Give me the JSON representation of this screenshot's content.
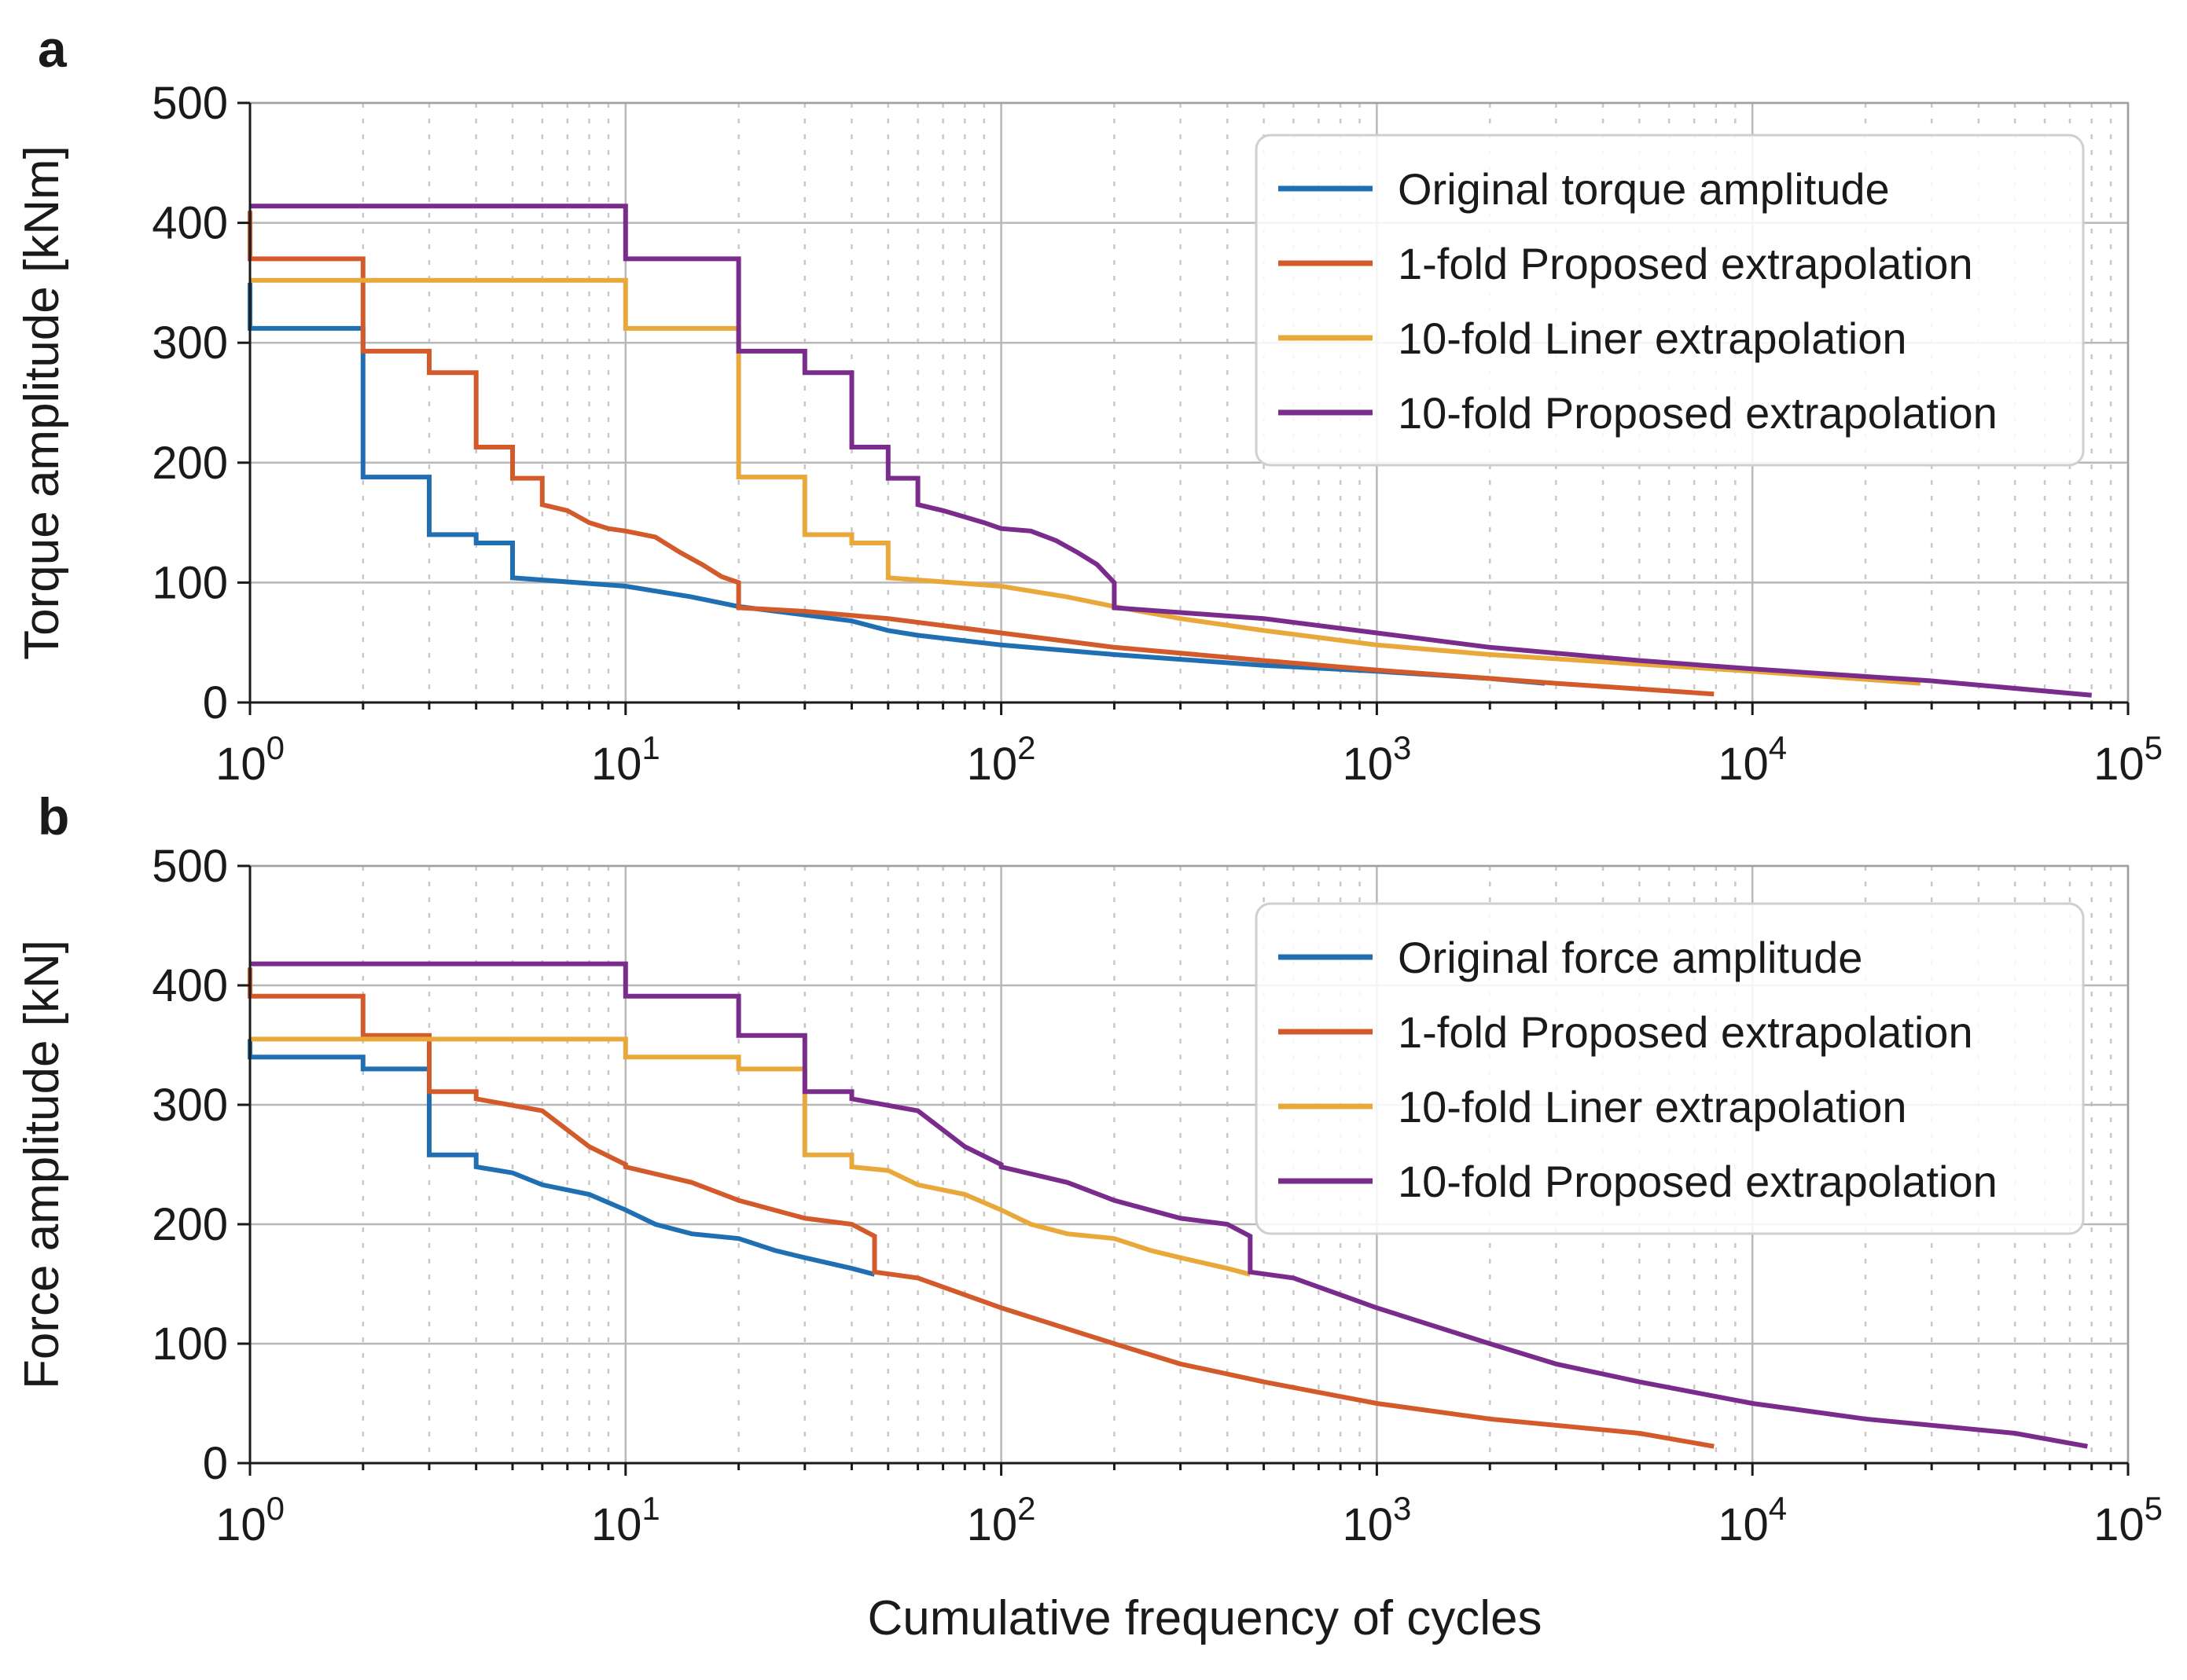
{
  "chart_data": [
    {
      "type": "line",
      "panel": "a",
      "xscale": "log",
      "xlim": [
        1,
        100000
      ],
      "ylim": [
        0,
        500
      ],
      "yticks": [
        0,
        100,
        200,
        300,
        400,
        500
      ],
      "ytick_labels": [
        "0",
        "100",
        "200",
        "300",
        "400",
        "500"
      ],
      "xticks": [
        1,
        10,
        100,
        1000,
        10000,
        100000
      ],
      "xtick_labels": [
        {
          "base": "10",
          "exp": "0"
        },
        {
          "base": "10",
          "exp": "1"
        },
        {
          "base": "10",
          "exp": "2"
        },
        {
          "base": "10",
          "exp": "3"
        },
        {
          "base": "10",
          "exp": "4"
        },
        {
          "base": "10",
          "exp": "5"
        }
      ],
      "xlabel": "",
      "ylabel": "Torque amplitude [kNm]",
      "grid": true,
      "legend_position": "top-right",
      "series": [
        {
          "name": "Original torque amplitude",
          "color": "#1f6fb2",
          "x": [
            1,
            1,
            2,
            2,
            3,
            3,
            4,
            4,
            5,
            5,
            10,
            15,
            20,
            40,
            50,
            60,
            100,
            200,
            300,
            500,
            1000,
            2000,
            2800
          ],
          "y": [
            350,
            312,
            312,
            188,
            188,
            140,
            140,
            133,
            133,
            104,
            97,
            88,
            80,
            68,
            60,
            56,
            48,
            40,
            36,
            31,
            26,
            20,
            16
          ]
        },
        {
          "name": "1-fold Proposed extrapolation",
          "color": "#d35a2a",
          "x": [
            1,
            1,
            2,
            2,
            3,
            3,
            4,
            4,
            5,
            5,
            6,
            6,
            7,
            8,
            9,
            10,
            12,
            14,
            16,
            18,
            20,
            20,
            30,
            50,
            100,
            200,
            500,
            1000,
            3000,
            7900
          ],
          "y": [
            410,
            370,
            370,
            293,
            293,
            275,
            275,
            213,
            213,
            187,
            187,
            165,
            160,
            150,
            145,
            143,
            138,
            125,
            115,
            105,
            100,
            79,
            76,
            70,
            58,
            46,
            35,
            27,
            16,
            7
          ]
        },
        {
          "name": "10-fold Liner extrapolation",
          "color": "#e8a93a",
          "x": [
            1,
            10,
            10,
            20,
            20,
            30,
            30,
            40,
            40,
            50,
            50,
            100,
            150,
            200,
            300,
            500,
            1000,
            2000,
            5000,
            10000,
            28000
          ],
          "y": [
            352,
            352,
            312,
            312,
            188,
            188,
            140,
            140,
            133,
            133,
            104,
            97,
            88,
            80,
            70,
            60,
            48,
            40,
            32,
            26,
            16
          ]
        },
        {
          "name": "10-fold Proposed extrapolation",
          "color": "#7a2c8c",
          "x": [
            1,
            10,
            10,
            20,
            20,
            30,
            30,
            40,
            40,
            50,
            50,
            60,
            60,
            70,
            90,
            100,
            120,
            140,
            160,
            180,
            200,
            200,
            500,
            1000,
            2000,
            5000,
            10000,
            30000,
            80000
          ],
          "y": [
            414,
            414,
            370,
            370,
            293,
            293,
            275,
            275,
            213,
            213,
            187,
            187,
            165,
            160,
            150,
            145,
            143,
            135,
            125,
            115,
            100,
            79,
            70,
            58,
            46,
            35,
            28,
            18,
            6
          ]
        }
      ]
    },
    {
      "type": "line",
      "panel": "b",
      "xscale": "log",
      "xlim": [
        1,
        100000
      ],
      "ylim": [
        0,
        500
      ],
      "yticks": [
        0,
        100,
        200,
        300,
        400,
        500
      ],
      "ytick_labels": [
        "0",
        "100",
        "200",
        "300",
        "400",
        "500"
      ],
      "xticks": [
        1,
        10,
        100,
        1000,
        10000,
        100000
      ],
      "xtick_labels": [
        {
          "base": "10",
          "exp": "0"
        },
        {
          "base": "10",
          "exp": "1"
        },
        {
          "base": "10",
          "exp": "2"
        },
        {
          "base": "10",
          "exp": "3"
        },
        {
          "base": "10",
          "exp": "4"
        },
        {
          "base": "10",
          "exp": "5"
        }
      ],
      "xlabel": "Cumulative frequency of cycles",
      "ylabel": "Force amplitude [kN]",
      "grid": true,
      "legend_position": "top-right",
      "series": [
        {
          "name": "Original force amplitude",
          "color": "#1f6fb2",
          "x": [
            1,
            1,
            2,
            2,
            3,
            3,
            4,
            4,
            5,
            6,
            8,
            10,
            12,
            15,
            20,
            25,
            30,
            40,
            46
          ],
          "y": [
            355,
            340,
            340,
            330,
            330,
            258,
            258,
            248,
            243,
            233,
            225,
            212,
            200,
            192,
            188,
            178,
            172,
            163,
            158
          ]
        },
        {
          "name": "1-fold Proposed extrapolation",
          "color": "#d35a2a",
          "x": [
            1,
            1,
            2,
            2,
            3,
            3,
            4,
            4,
            6,
            8,
            10,
            10,
            15,
            20,
            30,
            40,
            46,
            46,
            60,
            100,
            200,
            300,
            500,
            1000,
            2000,
            5000,
            7900
          ],
          "y": [
            415,
            391,
            391,
            358,
            358,
            311,
            311,
            305,
            295,
            265,
            250,
            248,
            235,
            220,
            205,
            200,
            190,
            160,
            155,
            130,
            100,
            83,
            68,
            50,
            37,
            25,
            14
          ]
        },
        {
          "name": "10-fold Liner extrapolation",
          "color": "#e8a93a",
          "x": [
            1,
            10,
            10,
            20,
            20,
            30,
            30,
            40,
            40,
            50,
            60,
            80,
            100,
            120,
            150,
            200,
            250,
            300,
            400,
            460
          ],
          "y": [
            355,
            355,
            340,
            340,
            330,
            330,
            258,
            258,
            248,
            245,
            233,
            225,
            212,
            200,
            192,
            188,
            178,
            172,
            163,
            158
          ]
        },
        {
          "name": "10-fold Proposed extrapolation",
          "color": "#7a2c8c",
          "x": [
            1,
            10,
            10,
            20,
            20,
            30,
            30,
            40,
            40,
            60,
            80,
            100,
            100,
            150,
            200,
            300,
            400,
            460,
            460,
            600,
            1000,
            2000,
            3000,
            5000,
            10000,
            20000,
            50000,
            78000
          ],
          "y": [
            418,
            418,
            391,
            391,
            358,
            358,
            311,
            311,
            305,
            295,
            265,
            250,
            248,
            235,
            220,
            205,
            200,
            190,
            160,
            155,
            130,
            100,
            83,
            68,
            50,
            37,
            25,
            14
          ]
        }
      ]
    }
  ]
}
